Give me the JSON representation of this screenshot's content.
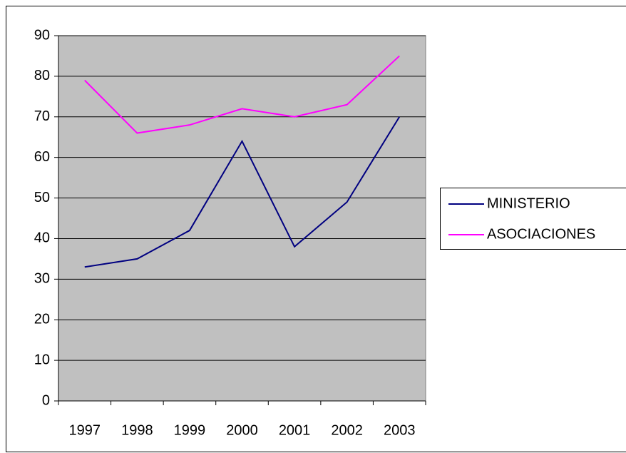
{
  "chart_data": {
    "type": "line",
    "categories": [
      "1997",
      "1998",
      "1999",
      "2000",
      "2001",
      "2002",
      "2003"
    ],
    "series": [
      {
        "name": "MINISTERIO",
        "color": "#000080",
        "values": [
          33,
          35,
          42,
          64,
          38,
          49,
          70
        ]
      },
      {
        "name": "ASOCIACIONES",
        "color": "#ff00ff",
        "values": [
          79,
          66,
          68,
          72,
          70,
          73,
          85
        ]
      }
    ],
    "ylim": [
      0,
      90
    ],
    "yticks": [
      0,
      10,
      20,
      30,
      40,
      50,
      60,
      70,
      80,
      90
    ],
    "grid": true,
    "legend": "right",
    "plot_background": "#c0c0c0"
  }
}
